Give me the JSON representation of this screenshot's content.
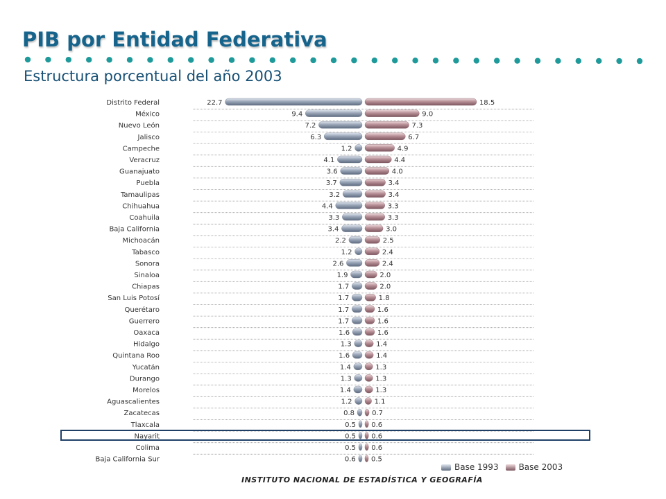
{
  "header": {
    "title": "PIB por Entidad Federativa",
    "subtitle": "Estructura porcentual del año 2003"
  },
  "footer": {
    "text": "INSTITUTO NACIONAL DE ESTADÍSTICA Y GEOGRAFÍA"
  },
  "colors": {
    "title": "#16638c",
    "dots": "#1e9a9a",
    "base1993": "#9aa6b8",
    "base2003": "#b78f96",
    "highlight": "#1f3f66"
  },
  "chart_data": {
    "type": "bar",
    "orientation": "horizontal-butterfly",
    "categories": [
      "Distrito Federal",
      "México",
      "Nuevo León",
      "Jalisco",
      "Campeche",
      "Veracruz",
      "Guanajuato",
      "Puebla",
      "Tamaulipas",
      "Chihuahua",
      "Coahuila",
      "Baja California",
      "Michoacán",
      "Tabasco",
      "Sonora",
      "Sinaloa",
      "Chiapas",
      "San Luis Potosí",
      "Querétaro",
      "Guerrero",
      "Oaxaca",
      "Hidalgo",
      "Quintana Roo",
      "Yucatán",
      "Durango",
      "Morelos",
      "Aguascalientes",
      "Zacatecas",
      "Tlaxcala",
      "Nayarit",
      "Colima",
      "Baja California Sur"
    ],
    "series": [
      {
        "name": "Base 1993",
        "values": [
          22.7,
          9.4,
          7.2,
          6.3,
          1.2,
          4.1,
          3.6,
          3.7,
          3.2,
          4.4,
          3.3,
          3.4,
          2.2,
          1.2,
          2.6,
          1.9,
          1.7,
          1.7,
          1.7,
          1.7,
          1.6,
          1.3,
          1.6,
          1.4,
          1.3,
          1.4,
          1.2,
          0.8,
          0.5,
          0.5,
          0.5,
          0.6
        ]
      },
      {
        "name": "Base 2003",
        "values": [
          18.5,
          9.0,
          7.3,
          6.7,
          4.9,
          4.4,
          4.0,
          3.4,
          3.4,
          3.3,
          3.3,
          3.0,
          2.5,
          2.4,
          2.4,
          2.0,
          2.0,
          1.8,
          1.6,
          1.6,
          1.6,
          1.4,
          1.4,
          1.3,
          1.3,
          1.3,
          1.1,
          0.7,
          0.6,
          0.6,
          0.6,
          0.5
        ]
      }
    ],
    "highlighted_category": "Nayarit",
    "legend": "bottom-right"
  }
}
